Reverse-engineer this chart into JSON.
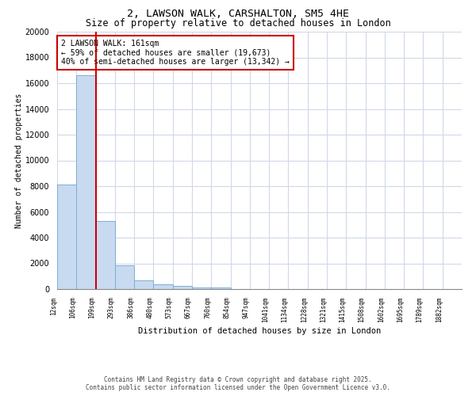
{
  "title1": "2, LAWSON WALK, CARSHALTON, SM5 4HE",
  "title2": "Size of property relative to detached houses in London",
  "xlabel": "Distribution of detached houses by size in London",
  "ylabel": "Number of detached properties",
  "categories": [
    "12sqm",
    "106sqm",
    "199sqm",
    "293sqm",
    "386sqm",
    "480sqm",
    "573sqm",
    "667sqm",
    "760sqm",
    "854sqm",
    "947sqm",
    "1041sqm",
    "1134sqm",
    "1228sqm",
    "1321sqm",
    "1415sqm",
    "1508sqm",
    "1602sqm",
    "1695sqm",
    "1789sqm",
    "1882sqm"
  ],
  "values": [
    8100,
    16600,
    5300,
    1850,
    700,
    350,
    220,
    150,
    130,
    0,
    0,
    0,
    0,
    0,
    0,
    0,
    0,
    0,
    0,
    0,
    0
  ],
  "bar_color": "#c8daf0",
  "bar_edge_color": "#7aafd4",
  "vline_color": "#cc0000",
  "vline_x_index": 1.5,
  "annotation_title": "2 LAWSON WALK: 161sqm",
  "annotation_line2": "← 59% of detached houses are smaller (19,673)",
  "annotation_line3": "40% of semi-detached houses are larger (13,342) →",
  "annotation_box_color": "#cc0000",
  "annotation_bg": "#ffffff",
  "ylim": [
    0,
    20000
  ],
  "yticks": [
    0,
    2000,
    4000,
    6000,
    8000,
    10000,
    12000,
    14000,
    16000,
    18000,
    20000
  ],
  "grid_color": "#d0d8e8",
  "footnote1": "Contains HM Land Registry data © Crown copyright and database right 2025.",
  "footnote2": "Contains public sector information licensed under the Open Government Licence v3.0.",
  "bg_color": "#ffffff",
  "title1_fontsize": 9.5,
  "title2_fontsize": 8.5
}
